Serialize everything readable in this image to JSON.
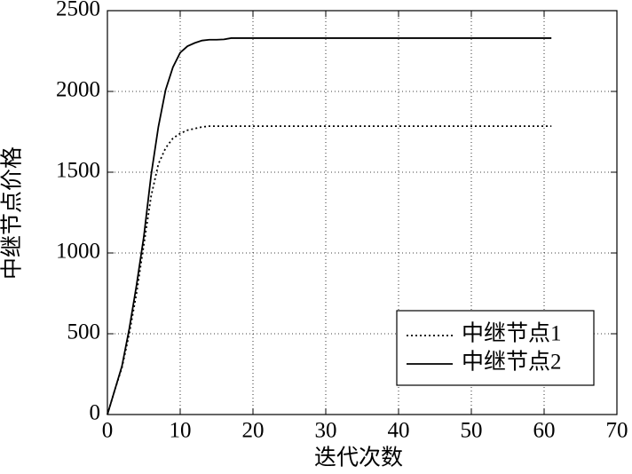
{
  "chart_data": {
    "type": "line",
    "xlabel": "迭代次数",
    "ylabel": "中继节点价格",
    "x": [
      0,
      1,
      2,
      3,
      4,
      5,
      6,
      7,
      8,
      9,
      10,
      11,
      12,
      13,
      14,
      15,
      16,
      17,
      61
    ],
    "series": [
      {
        "name": "中继节点1",
        "color": "#000000",
        "style": "dotted",
        "values": [
          0,
          150,
          290,
          500,
          750,
          1050,
          1350,
          1550,
          1650,
          1710,
          1740,
          1760,
          1770,
          1780,
          1785,
          1785,
          1785,
          1785,
          1785
        ]
      },
      {
        "name": "中继节点2",
        "color": "#000000",
        "style": "solid",
        "values": [
          0,
          150,
          300,
          530,
          800,
          1100,
          1480,
          1780,
          2010,
          2150,
          2240,
          2280,
          2300,
          2315,
          2320,
          2320,
          2322,
          2330,
          2330
        ]
      }
    ],
    "xlim": [
      0,
      70
    ],
    "xticks": [
      0,
      10,
      20,
      30,
      40,
      50,
      60,
      70
    ],
    "ylim": [
      0,
      2500
    ],
    "yticks": [
      0,
      500,
      1000,
      1500,
      2000,
      2500
    ],
    "grid": true,
    "legend": "lower right"
  }
}
